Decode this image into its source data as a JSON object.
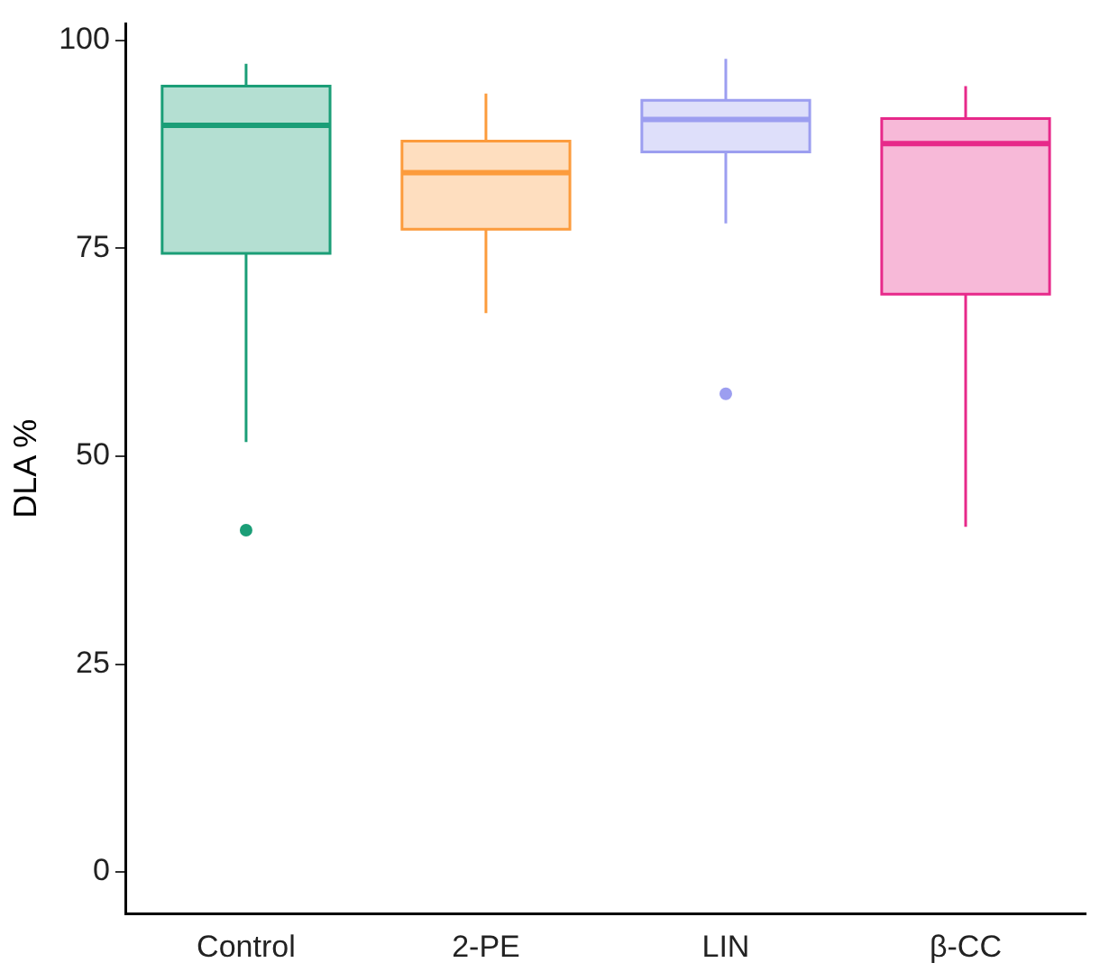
{
  "chart_data": {
    "type": "box",
    "ylabel": "DLA %",
    "categories": [
      "Control",
      "2-PE",
      "LIN",
      "β-CC"
    ],
    "boxes": [
      {
        "low": 51.7,
        "q1": 74.4,
        "median": 89.8,
        "q3": 94.5,
        "high": 97.2,
        "outliers": [
          41.1
        ]
      },
      {
        "low": 67.2,
        "q1": 77.3,
        "median": 84.1,
        "q3": 87.9,
        "high": 93.6
      },
      {
        "low": 78.0,
        "q1": 86.6,
        "median": 90.5,
        "q3": 92.8,
        "high": 97.8,
        "outliers": [
          57.5
        ]
      },
      {
        "low": 41.5,
        "q1": 69.5,
        "median": 87.6,
        "q3": 90.6,
        "high": 94.5
      }
    ],
    "colors": [
      "#1b9e77",
      "#fc9b3c",
      "#9c9ef0",
      "#e7298a"
    ],
    "ylim": [
      -5,
      102
    ],
    "yticks": [
      0,
      25,
      50,
      75,
      100
    ],
    "grid": false,
    "legend": false
  }
}
